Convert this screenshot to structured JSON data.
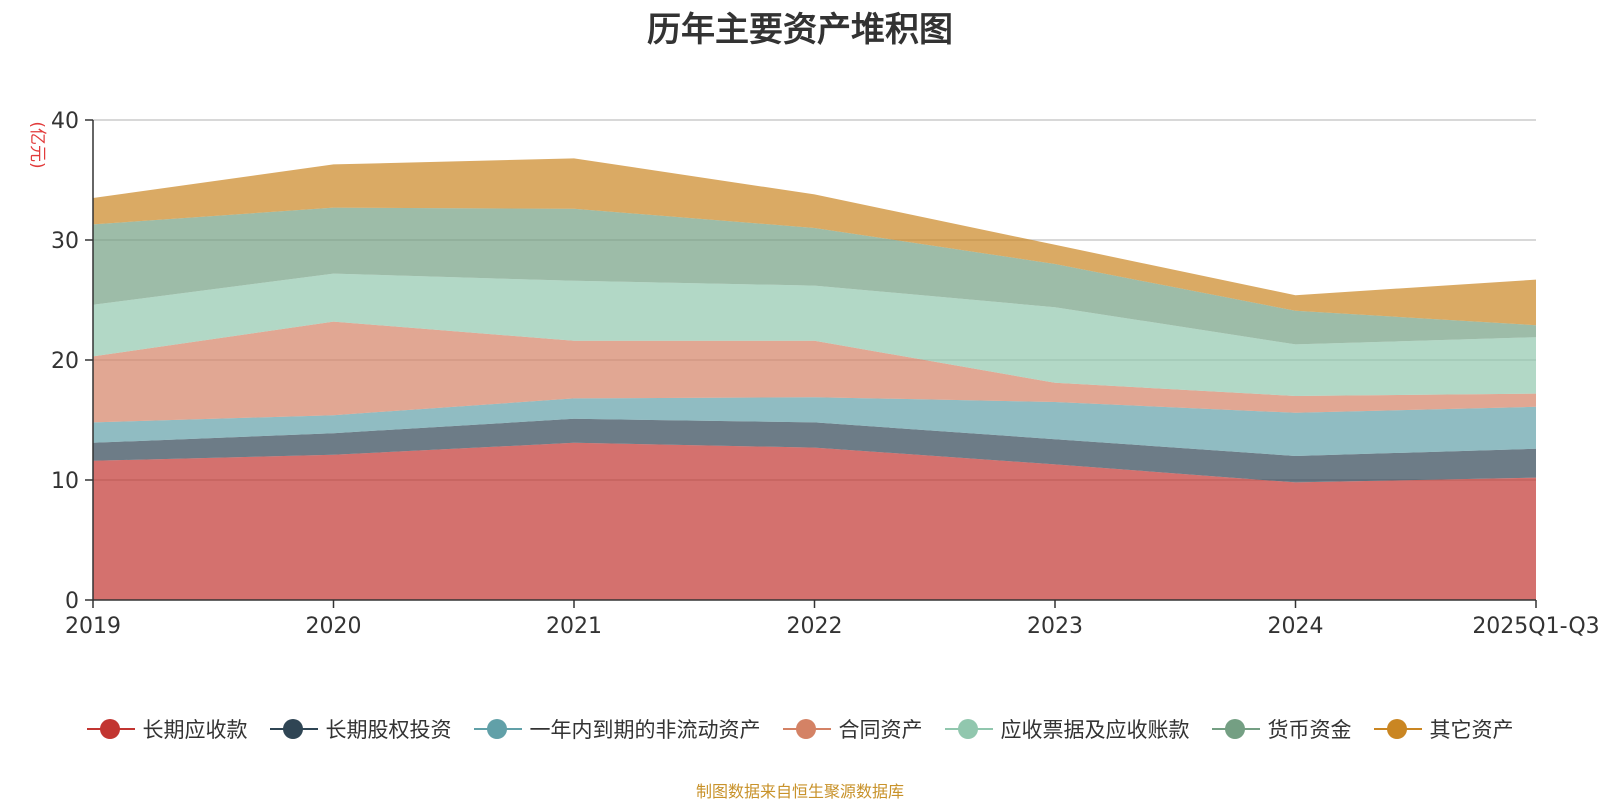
{
  "chart_data": {
    "type": "area",
    "stacked": true,
    "title": "历年主要资产堆积图",
    "ylabel": "(亿元)",
    "xlabel": "",
    "ylim": [
      0,
      40
    ],
    "yticks": [
      0,
      10,
      20,
      30,
      40
    ],
    "categories": [
      "2019",
      "2020",
      "2021",
      "2022",
      "2023",
      "2024",
      "2025Q1-Q3"
    ],
    "series": [
      {
        "name": "长期应收款",
        "color": "#c23531",
        "values": [
          11.6,
          12.1,
          13.1,
          12.7,
          11.3,
          9.8,
          10.2
        ]
      },
      {
        "name": "长期股权投资",
        "color": "#2f4554",
        "values": [
          1.5,
          1.8,
          2.0,
          2.1,
          2.1,
          2.2,
          2.4
        ]
      },
      {
        "name": "一年内到期的非流动资产",
        "color": "#61a0a8",
        "values": [
          1.7,
          1.5,
          1.7,
          2.1,
          3.1,
          3.6,
          3.5
        ]
      },
      {
        "name": "合同资产",
        "color": "#d48265",
        "values": [
          5.5,
          7.8,
          4.8,
          4.7,
          1.6,
          1.4,
          1.1
        ]
      },
      {
        "name": "应收票据及应收账款",
        "color": "#91c7ae",
        "values": [
          4.3,
          4.0,
          5.0,
          4.6,
          6.3,
          4.3,
          4.7
        ]
      },
      {
        "name": "货币资金",
        "color": "#749f83",
        "values": [
          6.7,
          5.5,
          6.0,
          4.8,
          3.6,
          2.8,
          1.0
        ]
      },
      {
        "name": "其它资产",
        "color": "#ca8622",
        "values": [
          2.2,
          3.6,
          4.2,
          2.8,
          1.6,
          1.3,
          3.8
        ]
      }
    ],
    "legend_position": "bottom",
    "grid": true
  },
  "source_note": "制图数据来自恒生聚源数据库"
}
